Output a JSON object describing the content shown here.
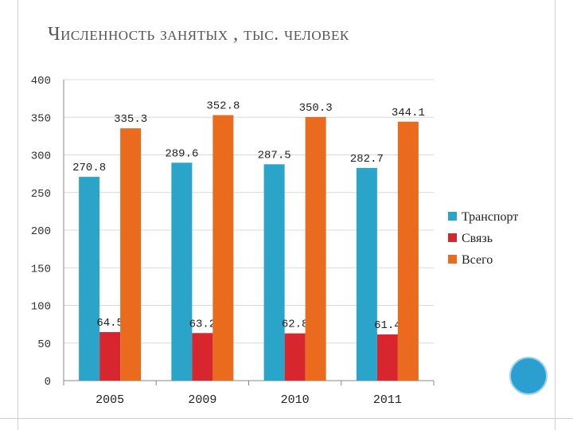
{
  "slide": {
    "title": "Численность занятых , тыс. человек"
  },
  "colors": {
    "transport": "#2aa4c8",
    "communication": "#d7262e",
    "total": "#ea6a1e"
  },
  "chart_data": {
    "type": "bar",
    "categories": [
      "2005",
      "2009",
      "2010",
      "2011"
    ],
    "series": [
      {
        "name": "Транспорт",
        "values": [
          270.8,
          289.6,
          287.5,
          282.7
        ]
      },
      {
        "name": "Связь",
        "values": [
          64.5,
          63.2,
          62.8,
          61.4
        ]
      },
      {
        "name": "Всего",
        "values": [
          335.3,
          352.8,
          350.3,
          344.1
        ]
      }
    ],
    "ylim": [
      0,
      400
    ],
    "yticks": [
      0,
      50,
      100,
      150,
      200,
      250,
      300,
      350,
      400
    ],
    "grid": true,
    "legend": "right"
  }
}
